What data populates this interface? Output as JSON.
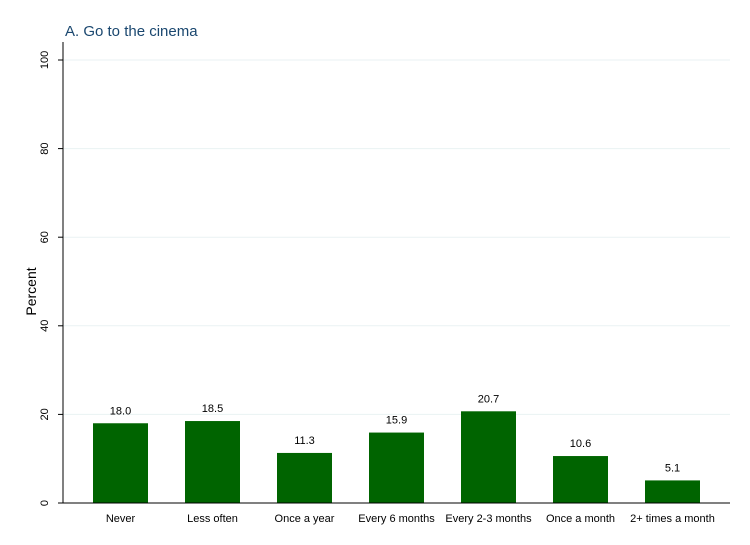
{
  "chart_data": {
    "type": "bar",
    "title": "A. Go to the cinema",
    "ylabel": "Percent",
    "xlabel": "",
    "categories": [
      "Never",
      "Less often",
      "Once a year",
      "Every 6 months",
      "Every 2-3 months",
      "Once a month",
      "2+ times a month"
    ],
    "values": [
      18.0,
      18.5,
      11.3,
      15.9,
      20.7,
      10.6,
      5.1
    ],
    "value_labels": [
      "18.0",
      "18.5",
      "11.3",
      "15.9",
      "20.7",
      "10.6",
      "5.1"
    ],
    "ylim": [
      0,
      100
    ],
    "yticks": [
      0,
      20,
      40,
      60,
      80,
      100
    ],
    "ytick_labels": [
      "0",
      "20",
      "40",
      "60",
      "80",
      "100"
    ],
    "grid": true,
    "colors": {
      "bar": "#006400",
      "title": "#1a476f",
      "grid": "#eaf2f3"
    }
  }
}
